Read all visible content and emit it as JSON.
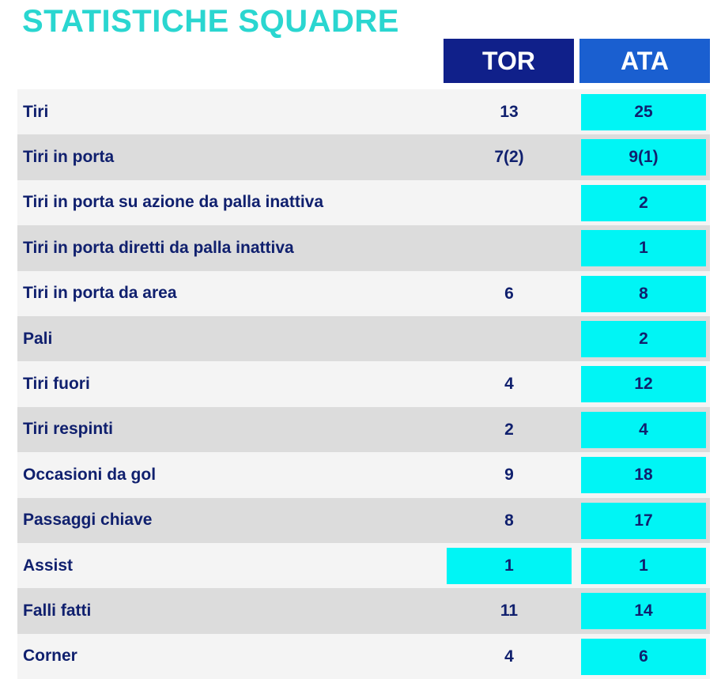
{
  "title": "STATISTICHE SQUADRE",
  "teams": {
    "home": "TOR",
    "away": "ATA"
  },
  "colors": {
    "title": "#2ad6d0",
    "home_header": "#10208a",
    "away_header": "#1a5fd0",
    "highlight": "#00f5f5",
    "text": "#10206e",
    "row_shade": "#dcdcdc",
    "row_plain": "#f4f4f4"
  },
  "rows": [
    {
      "label": "Tiri",
      "tor": "13",
      "ata": "25",
      "highlight": "ata"
    },
    {
      "label": "Tiri in porta",
      "tor": "7(2)",
      "ata": "9(1)",
      "highlight": "ata"
    },
    {
      "label": "Tiri in porta su azione da palla inattiva",
      "tor": "",
      "ata": "2",
      "highlight": "ata"
    },
    {
      "label": "Tiri in porta diretti da palla inattiva",
      "tor": "",
      "ata": "1",
      "highlight": "ata"
    },
    {
      "label": "Tiri in porta da area",
      "tor": "6",
      "ata": "8",
      "highlight": "ata"
    },
    {
      "label": "Pali",
      "tor": "",
      "ata": "2",
      "highlight": "ata"
    },
    {
      "label": "Tiri fuori",
      "tor": "4",
      "ata": "12",
      "highlight": "ata"
    },
    {
      "label": "Tiri respinti",
      "tor": "2",
      "ata": "4",
      "highlight": "ata"
    },
    {
      "label": "Occasioni da gol",
      "tor": "9",
      "ata": "18",
      "highlight": "ata"
    },
    {
      "label": "Passaggi chiave",
      "tor": "8",
      "ata": "17",
      "highlight": "ata"
    },
    {
      "label": "Assist",
      "tor": "1",
      "ata": "1",
      "highlight": "both"
    },
    {
      "label": "Falli fatti",
      "tor": "11",
      "ata": "14",
      "highlight": "ata"
    },
    {
      "label": "Corner",
      "tor": "4",
      "ata": "6",
      "highlight": "ata"
    }
  ]
}
